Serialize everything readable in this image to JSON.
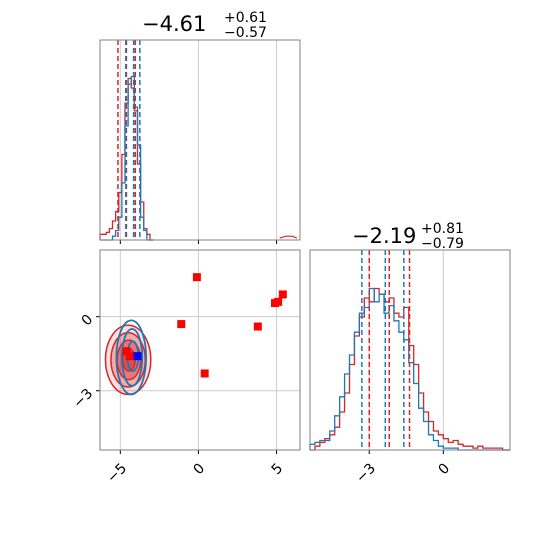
{
  "chart_data": {
    "type": "corner",
    "colors": {
      "series_a": "#d62728",
      "series_b": "#1f77b4",
      "points": "#ff0000",
      "highlight": "#0000ff",
      "grid": "#cccccc",
      "frame": "#808080"
    },
    "parameters": [
      {
        "title": {
          "median": "−4.61",
          "plus": "+0.61",
          "minus": "−0.57"
        },
        "range": [
          -6.3,
          6.5
        ],
        "ticks": [
          -5,
          0,
          5
        ],
        "tick_labels": [
          "−5",
          "0",
          "5"
        ],
        "quantiles": {
          "series_a": [
            -5.15,
            -4.61,
            -4.04
          ],
          "series_b": [
            -4.65,
            -4.15,
            -3.75
          ]
        },
        "histogram": {
          "bin_edges": [
            -6.3,
            -6.1,
            -5.9,
            -5.7,
            -5.5,
            -5.3,
            -5.1,
            -4.9,
            -4.7,
            -4.5,
            -4.3,
            -4.1,
            -3.9,
            -3.7,
            -3.5,
            -3.3,
            -3.1,
            -2.9
          ],
          "series_a": [
            0.03,
            0.03,
            0.04,
            0.06,
            0.1,
            0.15,
            0.25,
            0.45,
            0.72,
            0.85,
            0.8,
            0.68,
            0.4,
            0.2,
            0.06,
            0.03,
            0.0
          ],
          "series_b": [
            0.0,
            0.0,
            0.0,
            0.0,
            0.02,
            0.05,
            0.12,
            0.3,
            0.6,
            0.82,
            0.86,
            0.7,
            0.5,
            0.12,
            0.05,
            0.0,
            0.0
          ],
          "tail_a": [
            [
              5.2,
              0.01
            ],
            [
              5.6,
              0.02
            ],
            [
              6.0,
              0.02
            ],
            [
              6.3,
              0.01
            ]
          ]
        }
      },
      {
        "title": {
          "median": "−2.19",
          "plus": "+0.81",
          "minus": "−0.79"
        },
        "range": [
          -5.4,
          2.7
        ],
        "ticks": [
          -3,
          0
        ],
        "tick_labels": [
          "−3",
          "0"
        ],
        "quantiles": {
          "series_a": [
            -3.0,
            -2.19,
            -1.37
          ],
          "series_b": [
            -3.3,
            -2.35,
            -1.6
          ]
        },
        "histogram": {
          "bin_edges": [
            -5.4,
            -5.2,
            -5.0,
            -4.8,
            -4.6,
            -4.4,
            -4.2,
            -4.0,
            -3.8,
            -3.6,
            -3.4,
            -3.2,
            -3.0,
            -2.8,
            -2.6,
            -2.4,
            -2.2,
            -2.0,
            -1.8,
            -1.6,
            -1.4,
            -1.2,
            -1.0,
            -0.8,
            -0.6,
            -0.4,
            -0.2,
            0.0,
            0.2,
            0.4,
            0.6,
            0.8,
            1.0,
            1.2,
            1.4,
            1.6,
            1.8,
            2.0,
            2.2,
            2.4,
            2.7
          ],
          "series_a": [
            0.0,
            0.02,
            0.04,
            0.06,
            0.08,
            0.12,
            0.2,
            0.3,
            0.45,
            0.6,
            0.7,
            0.8,
            0.78,
            0.85,
            0.82,
            0.78,
            0.8,
            0.72,
            0.7,
            0.75,
            0.55,
            0.45,
            0.3,
            0.2,
            0.15,
            0.1,
            0.08,
            0.06,
            0.04,
            0.05,
            0.03,
            0.02,
            0.02,
            0.01,
            0.02,
            0.01,
            0.01,
            0.01,
            0.01,
            0.0
          ],
          "series_b": [
            0.03,
            0.04,
            0.05,
            0.05,
            0.1,
            0.18,
            0.28,
            0.4,
            0.5,
            0.62,
            0.72,
            0.75,
            0.85,
            0.78,
            0.82,
            0.72,
            0.76,
            0.68,
            0.62,
            0.58,
            0.46,
            0.35,
            0.22,
            0.15,
            0.08,
            0.05,
            0.02,
            0.01,
            0.01,
            0.01,
            0.0,
            0.0,
            0.0,
            0.0,
            0.0,
            0.0,
            0.0,
            0.0,
            0.0,
            0.0
          ]
        }
      }
    ],
    "scatter_points": [
      [
        -0.1,
        1.6
      ],
      [
        5.4,
        0.9
      ],
      [
        5.1,
        0.6
      ],
      [
        4.9,
        0.55
      ],
      [
        -1.1,
        -0.3
      ],
      [
        3.8,
        -0.4
      ],
      [
        0.4,
        -2.3
      ],
      [
        -4.6,
        -1.4
      ],
      [
        -4.4,
        -1.6
      ]
    ],
    "highlight_point": [
      -3.9,
      -1.6
    ],
    "contours": {
      "series_a": [
        {
          "cx": -4.5,
          "cy": -1.75,
          "rx": 1.45,
          "ry": 1.4,
          "fill": 0.25
        },
        {
          "cx": -4.5,
          "cy": -1.75,
          "rx": 1.1,
          "ry": 1.1,
          "fill": 0.45
        },
        {
          "cx": -4.45,
          "cy": -1.75,
          "rx": 0.75,
          "ry": 0.8,
          "fill": 0.65
        },
        {
          "cx": -4.45,
          "cy": -1.75,
          "rx": 0.4,
          "ry": 0.45,
          "fill": 0.9
        }
      ],
      "series_b": [
        {
          "cx": -4.3,
          "cy": -1.65,
          "rx": 0.95,
          "ry": 1.5
        },
        {
          "cx": -4.25,
          "cy": -1.65,
          "rx": 0.65,
          "ry": 1.15
        },
        {
          "cx": -4.2,
          "cy": -1.6,
          "rx": 0.35,
          "ry": 0.6
        }
      ]
    },
    "grid": true
  }
}
